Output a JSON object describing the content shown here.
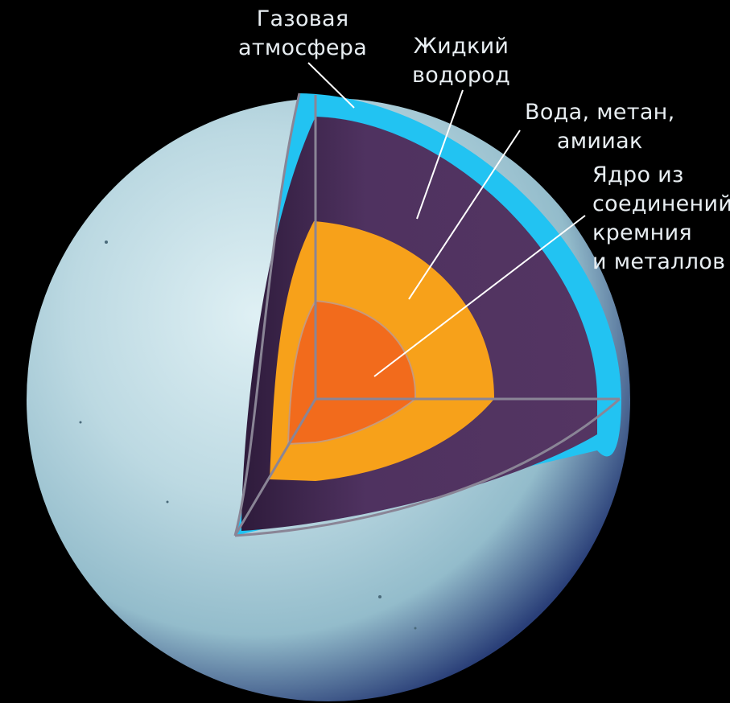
{
  "labels": {
    "atmosphere": [
      "Газовая",
      "атмосфера"
    ],
    "hydrogen": [
      "Жидкий",
      "водород"
    ],
    "water": [
      "Вода, метан,",
      "амииак"
    ],
    "core": [
      "Ядро из",
      "соединений",
      "кремния",
      "и металлов"
    ]
  },
  "colors": {
    "background": "#000000",
    "planet_surface": "#b9d6e0",
    "atmosphere_layer": "#21c4f2",
    "hydrogen_layer": "#523460",
    "water_layer": "#f7a21a",
    "core_layer": "#f26d1c",
    "leader_lines": "#ffffff"
  }
}
